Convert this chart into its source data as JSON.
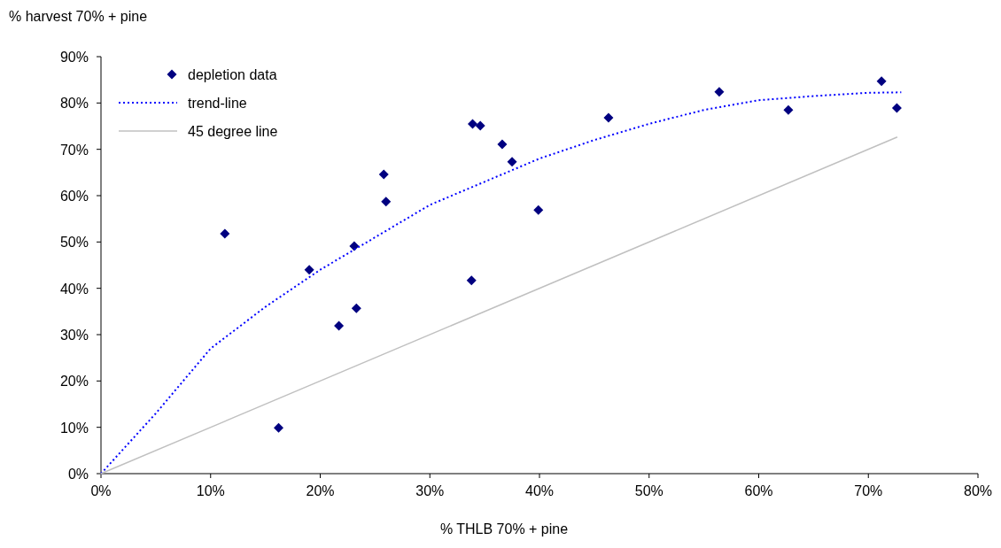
{
  "chart_data": {
    "type": "scatter",
    "xlabel": "% THLB 70% + pine",
    "ylabel": "% harvest 70% + pine",
    "xlim": [
      0,
      80
    ],
    "xticks": [
      {
        "value": 0,
        "label": "0%"
      },
      {
        "value": 10,
        "label": "10%"
      },
      {
        "value": 20,
        "label": "20%"
      },
      {
        "value": 30,
        "label": "30%"
      },
      {
        "value": 40,
        "label": "40%"
      },
      {
        "value": 50,
        "label": "50%"
      },
      {
        "value": 60,
        "label": "60%"
      },
      {
        "value": 70,
        "label": "70%"
      },
      {
        "value": 80,
        "label": "80%"
      }
    ],
    "ylim": [
      0,
      90
    ],
    "yticks": [
      {
        "value": 0,
        "label": "0%"
      },
      {
        "value": 10,
        "label": "10%"
      },
      {
        "value": 20,
        "label": "20%"
      },
      {
        "value": 30,
        "label": "30%"
      },
      {
        "value": 40,
        "label": "40%"
      },
      {
        "value": 50,
        "label": "50%"
      },
      {
        "value": 60,
        "label": "60%"
      },
      {
        "value": 70,
        "label": "70%"
      },
      {
        "value": 80,
        "label": "80%"
      },
      {
        "value": 90,
        "label": "90%"
      }
    ],
    "legend": "top left",
    "grid": false,
    "series": [
      {
        "name": "depletion data",
        "marker": "diamond",
        "color": "#000080",
        "x": [
          11.3,
          16.2,
          19.0,
          21.7,
          23.1,
          23.3,
          25.8,
          26.0,
          33.8,
          33.9,
          34.6,
          36.6,
          37.5,
          39.9,
          46.3,
          56.4,
          62.7,
          71.2,
          72.6
        ],
        "values": [
          51.8,
          9.9,
          44.0,
          31.9,
          49.1,
          35.7,
          64.6,
          58.7,
          41.7,
          75.5,
          75.1,
          71.1,
          67.3,
          56.9,
          76.8,
          82.4,
          78.5,
          84.7,
          78.9
        ]
      },
      {
        "name": "trend-line",
        "type": "line",
        "line_style": "dotted",
        "marker": "none",
        "color": "#0000ff",
        "x": [
          0,
          5,
          10,
          15,
          20,
          25,
          30,
          35,
          40,
          45,
          50,
          55,
          60,
          65,
          70,
          73
        ],
        "values": [
          0,
          13,
          27,
          36,
          44,
          51,
          58,
          63,
          68,
          72,
          75.5,
          78.5,
          80.6,
          81.5,
          82.2,
          82.3
        ]
      },
      {
        "name": "45 degree line",
        "type": "line",
        "line_style": "solid",
        "marker": "none",
        "color": "#c0c0c0",
        "x": [
          0,
          72.6
        ],
        "values": [
          0,
          72.6
        ]
      }
    ]
  }
}
